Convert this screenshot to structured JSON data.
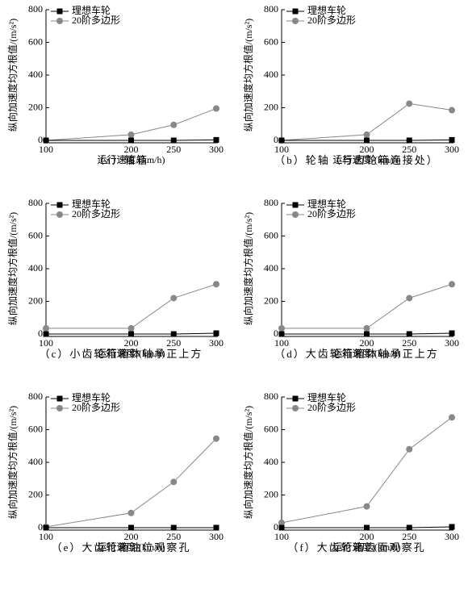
{
  "chart_data": [
    {
      "type": "line",
      "caption": "（a）轴箱",
      "x_label": "运行速度/(km/h)",
      "y_label": "纵向加速度均方根值/(m/s²)",
      "x": [
        100,
        200,
        250,
        300
      ],
      "xlim": [
        100,
        300
      ],
      "xticks": [
        100,
        200,
        250,
        300
      ],
      "ylim": [
        0,
        800
      ],
      "yticks": [
        0,
        200,
        400,
        600,
        800
      ],
      "legend": "upper left",
      "series": [
        {
          "name": "理想车轮",
          "color": "#000000",
          "marker": "square",
          "values": [
            0,
            0,
            0,
            3
          ]
        },
        {
          "name": "20阶多边形",
          "color": "#888888",
          "marker": "circle",
          "values": [
            0,
            35,
            95,
            195
          ]
        }
      ]
    },
    {
      "type": "line",
      "caption": "（b）轮轴（与齿轮箱连接处）",
      "x_label": "运行速度/(km/h)",
      "y_label": "纵向加速度均方根值/(m/s²)",
      "x": [
        100,
        200,
        250,
        300
      ],
      "xlim": [
        100,
        300
      ],
      "xticks": [
        100,
        200,
        250,
        300
      ],
      "ylim": [
        0,
        800
      ],
      "yticks": [
        0,
        200,
        400,
        600,
        800
      ],
      "legend": "upper left",
      "series": [
        {
          "name": "理想车轮",
          "color": "#000000",
          "marker": "square",
          "values": [
            0,
            0,
            0,
            3
          ]
        },
        {
          "name": "20阶多边形",
          "color": "#888888",
          "marker": "circle",
          "values": [
            0,
            35,
            225,
            185
          ]
        }
      ]
    },
    {
      "type": "line",
      "caption": "（c）小齿轮箱箱体轴承正上方",
      "x_label": "运行速度/(km/h)",
      "y_label": "纵向加速度均方根值/(m/s²)",
      "x": [
        100,
        200,
        250,
        300
      ],
      "xlim": [
        100,
        300
      ],
      "xticks": [
        100,
        200,
        250,
        300
      ],
      "ylim": [
        0,
        800
      ],
      "yticks": [
        0,
        200,
        400,
        600,
        800
      ],
      "legend": "upper left",
      "series": [
        {
          "name": "理想车轮",
          "color": "#000000",
          "marker": "square",
          "values": [
            0,
            0,
            0,
            5
          ]
        },
        {
          "name": "20阶多边形",
          "color": "#888888",
          "marker": "circle",
          "values": [
            35,
            35,
            220,
            305
          ]
        }
      ]
    },
    {
      "type": "line",
      "caption": "（d）大齿轮箱箱体轴承正上方",
      "x_label": "运行速度/(km/h)",
      "y_label": "纵向加速度均方根值/(m/s²)",
      "x": [
        100,
        200,
        250,
        300
      ],
      "xlim": [
        100,
        300
      ],
      "xticks": [
        100,
        200,
        250,
        300
      ],
      "ylim": [
        0,
        800
      ],
      "yticks": [
        0,
        200,
        400,
        600,
        800
      ],
      "legend": "upper left",
      "series": [
        {
          "name": "理想车轮",
          "color": "#000000",
          "marker": "square",
          "values": [
            0,
            0,
            0,
            5
          ]
        },
        {
          "name": "20阶多边形",
          "color": "#888888",
          "marker": "circle",
          "values": [
            35,
            35,
            220,
            305
          ]
        }
      ]
    },
    {
      "type": "line",
      "caption": "（e）大齿轮箱油位观察孔",
      "x_label": "运行速度/(km/h)",
      "y_label": "纵向加速度均方根值/(m/s²)",
      "x": [
        100,
        200,
        250,
        300
      ],
      "xlim": [
        100,
        300
      ],
      "xticks": [
        100,
        200,
        250,
        300
      ],
      "ylim": [
        0,
        800
      ],
      "yticks": [
        0,
        200,
        400,
        600,
        800
      ],
      "legend": "upper left",
      "series": [
        {
          "name": "理想车轮",
          "color": "#000000",
          "marker": "square",
          "values": [
            0,
            0,
            0,
            0
          ]
        },
        {
          "name": "20阶多边形",
          "color": "#888888",
          "marker": "circle",
          "values": [
            5,
            90,
            280,
            545
          ]
        }
      ]
    },
    {
      "type": "line",
      "caption": "（f）大齿轮箱齿面观察孔",
      "x_label": "运行速度/(km/h)",
      "y_label": "纵向加速度均方根值/(m/s²)",
      "x": [
        100,
        200,
        250,
        300
      ],
      "xlim": [
        100,
        300
      ],
      "xticks": [
        100,
        200,
        250,
        300
      ],
      "ylim": [
        0,
        800
      ],
      "yticks": [
        0,
        200,
        400,
        600,
        800
      ],
      "legend": "upper left",
      "series": [
        {
          "name": "理想车轮",
          "color": "#000000",
          "marker": "square",
          "values": [
            0,
            0,
            0,
            5
          ]
        },
        {
          "name": "20阶多边形",
          "color": "#888888",
          "marker": "circle",
          "values": [
            30,
            130,
            480,
            675
          ]
        }
      ]
    }
  ]
}
